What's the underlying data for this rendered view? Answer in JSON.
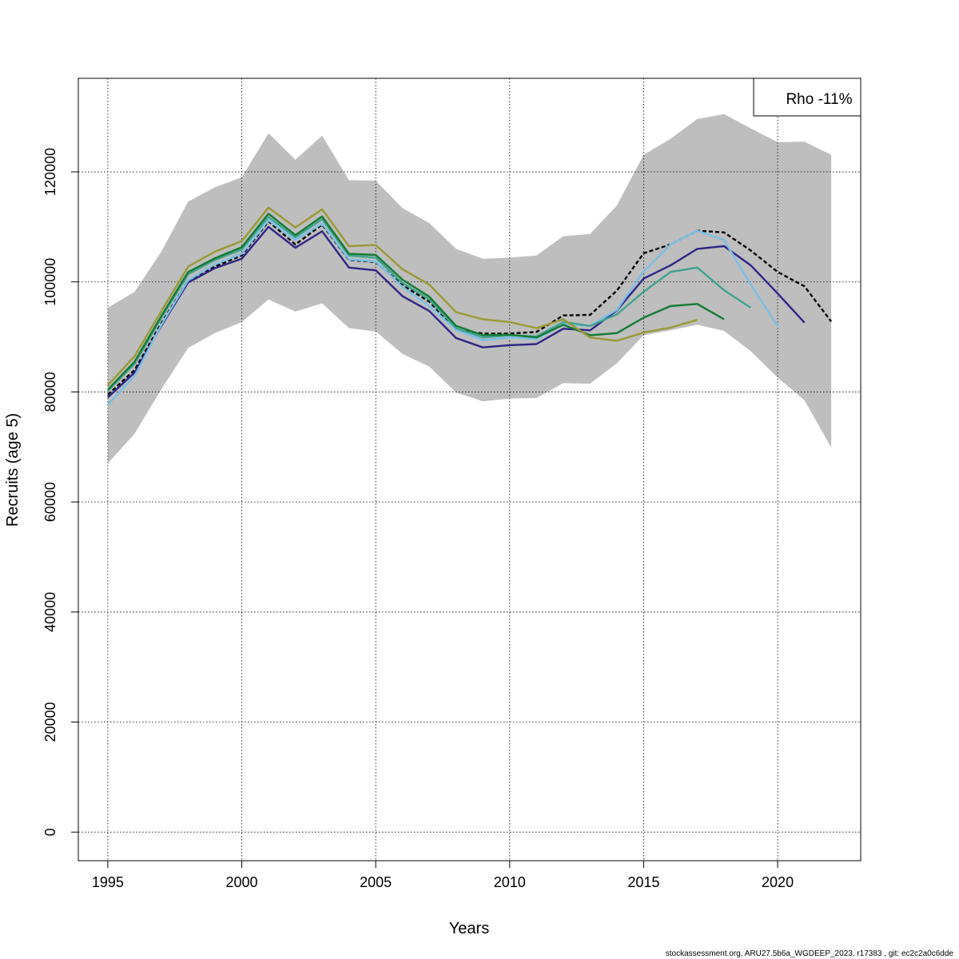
{
  "chart_data": {
    "type": "line",
    "xlabel": "Years",
    "ylabel": "Recruits (age 5)",
    "xlim": [
      1993.9,
      2023.1
    ],
    "ylim": [
      -5200,
      137000
    ],
    "xticks": [
      1995,
      2000,
      2005,
      2010,
      2015,
      2020
    ],
    "yticks": [
      0,
      20000,
      40000,
      60000,
      80000,
      100000,
      120000
    ],
    "grid": true,
    "legend": {
      "position": "top-right",
      "text": "Rho -11%"
    },
    "footer": "stockassessment.org, ARU27.5b6a_WGDEEP_2023, r17383 , git: ec2c2a0c6dde",
    "confidence_band": {
      "x": [
        1995,
        1996,
        1997,
        1998,
        1999,
        2000,
        2001,
        2002,
        2003,
        2004,
        2005,
        2006,
        2007,
        2008,
        2009,
        2010,
        2011,
        2012,
        2013,
        2014,
        2015,
        2016,
        2017,
        2018,
        2019,
        2020,
        2021,
        2022
      ],
      "upper": [
        95300,
        98200,
        105500,
        114600,
        117200,
        119000,
        127000,
        122200,
        126600,
        118500,
        118400,
        113400,
        110700,
        106000,
        104200,
        104400,
        104800,
        108300,
        108700,
        113900,
        123100,
        126000,
        129600,
        130500,
        127900,
        125400,
        125500,
        123100
      ],
      "lower": [
        67000,
        72400,
        80500,
        88000,
        90700,
        92700,
        96800,
        94600,
        96100,
        91600,
        91000,
        86900,
        84600,
        79900,
        78300,
        78800,
        78900,
        81600,
        81500,
        85200,
        90300,
        91200,
        92200,
        91100,
        87400,
        82600,
        78500,
        69900
      ]
    },
    "series": [
      {
        "color": "#000000",
        "dashed": true,
        "x": [
          1995,
          1996,
          1997,
          1998,
          1999,
          2000,
          2001,
          2002,
          2003,
          2004,
          2005,
          2006,
          2007,
          2008,
          2009,
          2010,
          2011,
          2012,
          2013,
          2014,
          2015,
          2016,
          2017,
          2018,
          2019,
          2020,
          2021,
          2022
        ],
        "values": [
          79500,
          84000,
          92500,
          100300,
          102800,
          104800,
          111000,
          106800,
          110400,
          104000,
          103600,
          99400,
          96400,
          91300,
          90600,
          90600,
          90900,
          93900,
          94000,
          98400,
          105200,
          106800,
          109300,
          109000,
          105700,
          101800,
          99200,
          92800
        ]
      },
      {
        "color": "#2E2487",
        "dashed": false,
        "x": [
          1995,
          1996,
          1997,
          1998,
          1999,
          2000,
          2001,
          2002,
          2003,
          2004,
          2005,
          2006,
          2007,
          2008,
          2009,
          2010,
          2011,
          2012,
          2013,
          2014,
          2015,
          2016,
          2017,
          2018,
          2019,
          2020,
          2021
        ],
        "values": [
          79000,
          83500,
          92000,
          99900,
          102500,
          104200,
          110000,
          106200,
          109200,
          102600,
          102100,
          97400,
          94700,
          89800,
          88100,
          88500,
          88700,
          91500,
          91200,
          94800,
          100600,
          103000,
          106000,
          106500,
          103000,
          97900,
          92600
        ]
      },
      {
        "color": "#79C0E6",
        "dashed": false,
        "x": [
          1995,
          1996,
          1997,
          1998,
          1999,
          2000,
          2001,
          2002,
          2003,
          2004,
          2005,
          2006,
          2007,
          2008,
          2009,
          2010,
          2011,
          2012,
          2013,
          2014,
          2015,
          2016,
          2017,
          2018,
          2019,
          2020
        ],
        "values": [
          77700,
          82900,
          92200,
          100300,
          103200,
          105100,
          111200,
          107600,
          110600,
          104100,
          103700,
          99100,
          95600,
          91300,
          89400,
          89900,
          89600,
          92300,
          92000,
          94900,
          101900,
          106800,
          109300,
          107600,
          99500,
          91900
        ]
      },
      {
        "color": "#3FA38E",
        "dashed": false,
        "x": [
          1995,
          1996,
          1997,
          1998,
          1999,
          2000,
          2001,
          2002,
          2003,
          2004,
          2005,
          2006,
          2007,
          2008,
          2009,
          2010,
          2011,
          2012,
          2013,
          2014,
          2015,
          2016,
          2017,
          2018,
          2019
        ],
        "values": [
          80200,
          85100,
          93500,
          101400,
          104000,
          105900,
          111800,
          108100,
          111400,
          104800,
          104400,
          99800,
          96800,
          91600,
          89900,
          90300,
          90100,
          92700,
          92000,
          94100,
          98200,
          101800,
          102600,
          98500,
          95300
        ]
      },
      {
        "color": "#137B33",
        "dashed": false,
        "x": [
          1995,
          1996,
          1997,
          1998,
          1999,
          2000,
          2001,
          2002,
          2003,
          2004,
          2005,
          2006,
          2007,
          2008,
          2009,
          2010,
          2011,
          2012,
          2013,
          2014,
          2015,
          2016,
          2017,
          2018
        ],
        "values": [
          80400,
          85500,
          93800,
          101800,
          104300,
          106300,
          112400,
          108500,
          111900,
          105100,
          104900,
          100400,
          97300,
          92000,
          90300,
          90400,
          89900,
          92200,
          90300,
          90700,
          93500,
          95600,
          96000,
          93200
        ]
      },
      {
        "color": "#999933",
        "dashed": false,
        "x": [
          1995,
          1996,
          1997,
          1998,
          1999,
          2000,
          2001,
          2002,
          2003,
          2004,
          2005,
          2006,
          2007,
          2008,
          2009,
          2010,
          2011,
          2012,
          2013,
          2014,
          2015,
          2016,
          2017
        ],
        "values": [
          81200,
          86500,
          94700,
          102800,
          105500,
          107400,
          113500,
          109900,
          113200,
          106500,
          106700,
          102300,
          99500,
          94500,
          93200,
          92700,
          91600,
          93200,
          89900,
          89300,
          90800,
          91700,
          93100
        ]
      }
    ]
  }
}
